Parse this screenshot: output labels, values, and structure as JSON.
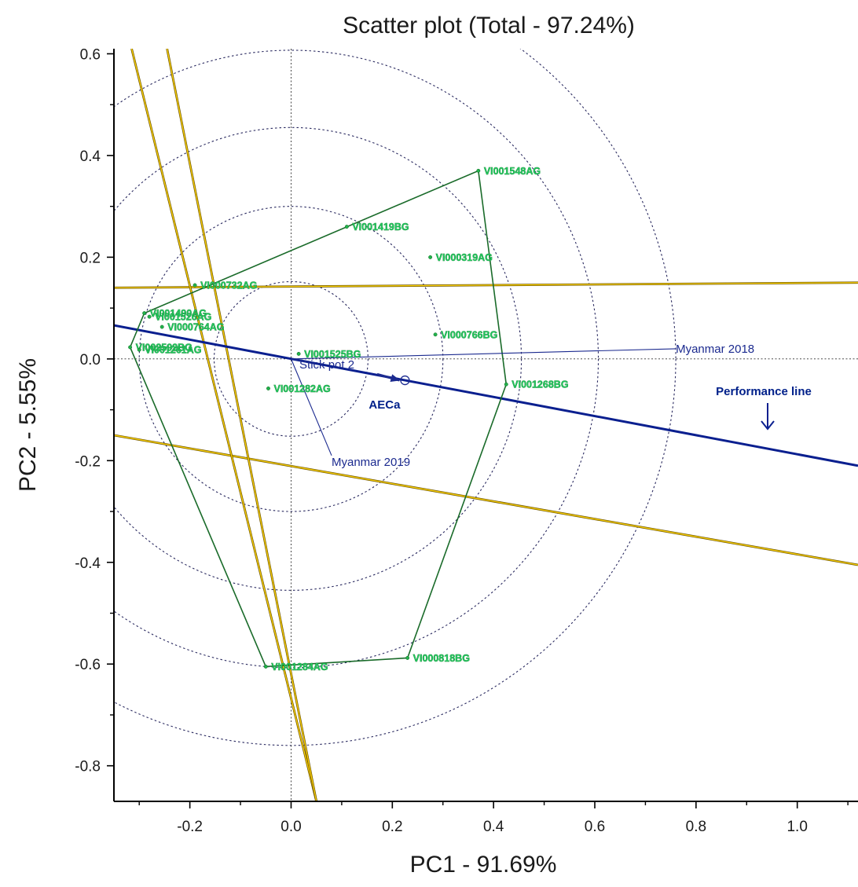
{
  "chart_data": {
    "type": "scatter",
    "title": "Scatter plot (Total - 97.24%)",
    "xlabel": "PC1 - 91.69%",
    "ylabel": "PC2 - 5.55%",
    "xlim": [
      -0.35,
      1.12
    ],
    "ylim": [
      -0.87,
      0.61
    ],
    "x_ticks": [
      -0.2,
      0.0,
      0.2,
      0.4,
      0.6,
      0.8,
      1.0
    ],
    "x_tick_labels": [
      "-0.2",
      "0.0",
      "0.2",
      "0.4",
      "0.6",
      "0.8",
      "1.0"
    ],
    "y_ticks": [
      0.6,
      0.4,
      0.2,
      0.0,
      -0.2,
      -0.4,
      -0.6,
      -0.8
    ],
    "y_tick_labels": [
      "0.6",
      "0.4",
      "0.2",
      "0.0",
      "-0.2",
      "-0.4",
      "-0.6",
      "-0.8"
    ],
    "grid": false,
    "genotypes": [
      {
        "name": "VI001548AG",
        "x": 0.37,
        "y": 0.37
      },
      {
        "name": "VI001419BG",
        "x": 0.11,
        "y": 0.26
      },
      {
        "name": "VI000319AG",
        "x": 0.275,
        "y": 0.2
      },
      {
        "name": "VI000732AG",
        "x": -0.19,
        "y": 0.145
      },
      {
        "name": "VI001490AG",
        "x": -0.29,
        "y": 0.09
      },
      {
        "name": "VI001526AG",
        "x": -0.28,
        "y": 0.083
      },
      {
        "name": "VI000764AG",
        "x": -0.255,
        "y": 0.063
      },
      {
        "name": "VI000766BG",
        "x": 0.285,
        "y": 0.048
      },
      {
        "name": "VI001525BG",
        "x": 0.015,
        "y": 0.01
      },
      {
        "name": "VI002592BG",
        "x": -0.318,
        "y": 0.023
      },
      {
        "name": "VI001261AG",
        "x": -0.3,
        "y": 0.018
      },
      {
        "name": "VI001268BG",
        "x": 0.425,
        "y": -0.05
      },
      {
        "name": "VI001282AG",
        "x": -0.045,
        "y": -0.058
      },
      {
        "name": "VI001284AG",
        "x": -0.05,
        "y": -0.605
      },
      {
        "name": "VI000818BG",
        "x": 0.23,
        "y": -0.588
      }
    ],
    "polygon_order": [
      "VI001548AG",
      "VI001268BG",
      "VI000818BG",
      "VI001284AG",
      "VI002592BG",
      "VI001490AG"
    ],
    "environments": [
      {
        "name": "Myanmar 2018",
        "x": 0.76,
        "y": 0.02
      },
      {
        "name": "Myanmar 2019",
        "x": 0.08,
        "y": -0.19
      },
      {
        "name": "Stick pot 2",
        "x": 0.035,
        "y": -0.005
      }
    ],
    "sector_lines": [
      {
        "x": -0.35,
        "y": 0.14,
        "x2": 1.12,
        "y2": 0.15
      },
      {
        "x": -0.35,
        "y": -0.15,
        "x2": 1.12,
        "y2": -0.405
      },
      {
        "x": -0.315,
        "y": 0.61,
        "x2": 0.05,
        "y2": -0.87
      },
      {
        "x": -0.245,
        "y": 0.61,
        "x2": 0.05,
        "y2": -0.87
      }
    ],
    "circles": {
      "center": [
        0.0,
        0.0
      ],
      "radii": [
        0.152,
        0.3,
        0.455,
        0.607,
        0.76
      ]
    },
    "aec_point": {
      "label": "AECa",
      "x": 0.225,
      "y": -0.042
    },
    "performance_line": {
      "label": "Performance line",
      "x": -0.35,
      "y": 0.066,
      "x2": 1.12,
      "y2": -0.21
    },
    "colors": {
      "axes": "#000000",
      "polygon": "#1a6b2a",
      "genotype_point": "#22b14c",
      "sector_line": "#d8a800",
      "environment_vector": "#1b2a8f",
      "performance_line": "#0a1f8f",
      "circles": "#2a2a60"
    }
  }
}
